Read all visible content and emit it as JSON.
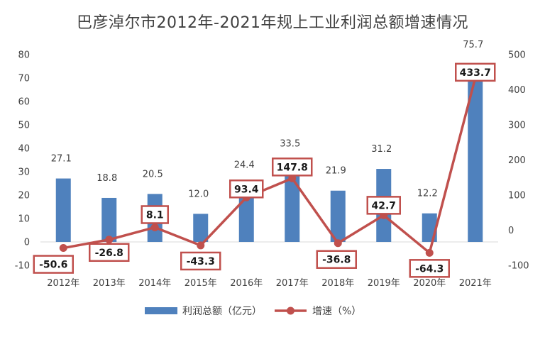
{
  "chart_data": {
    "type": "bar",
    "title": "巴彦淖尔市2012年-2021年规上工业利润总额增速情况",
    "categories": [
      "2012年",
      "2013年",
      "2014年",
      "2015年",
      "2016年",
      "2017年",
      "2018年",
      "2019年",
      "2020年",
      "2021年"
    ],
    "series": [
      {
        "name": "利润总额（亿元）",
        "type": "bar",
        "axis": "left",
        "values": [
          27.1,
          18.8,
          20.5,
          12.0,
          24.4,
          33.5,
          21.9,
          31.2,
          12.2,
          75.7
        ],
        "labels": [
          "27.1",
          "18.8",
          "20.5",
          "12.0",
          "24.4",
          "33.5",
          "21.9",
          "31.2",
          "12.2",
          "75.7"
        ],
        "color": "#4f81bd"
      },
      {
        "name": "增速（%）",
        "type": "line",
        "axis": "right",
        "values": [
          -50.6,
          -26.8,
          8.1,
          -43.3,
          93.4,
          147.8,
          -36.8,
          42.7,
          -64.3,
          433.7
        ],
        "labels": [
          "-50.6",
          "-26.8",
          "8.1",
          "-43.3",
          "93.4",
          "147.8",
          "-36.8",
          "42.7",
          "-64.3",
          "433.7"
        ],
        "color": "#c0504d"
      }
    ],
    "y_left": {
      "min": -10,
      "max": 80,
      "ticks": [
        "-10",
        "0",
        "10",
        "20",
        "30",
        "40",
        "50",
        "60",
        "70",
        "80"
      ]
    },
    "y_right": {
      "min": -100,
      "max": 500,
      "ticks": [
        "-100",
        "0",
        "100",
        "200",
        "300",
        "400",
        "500"
      ]
    },
    "grid": false,
    "legend": "bottom"
  }
}
